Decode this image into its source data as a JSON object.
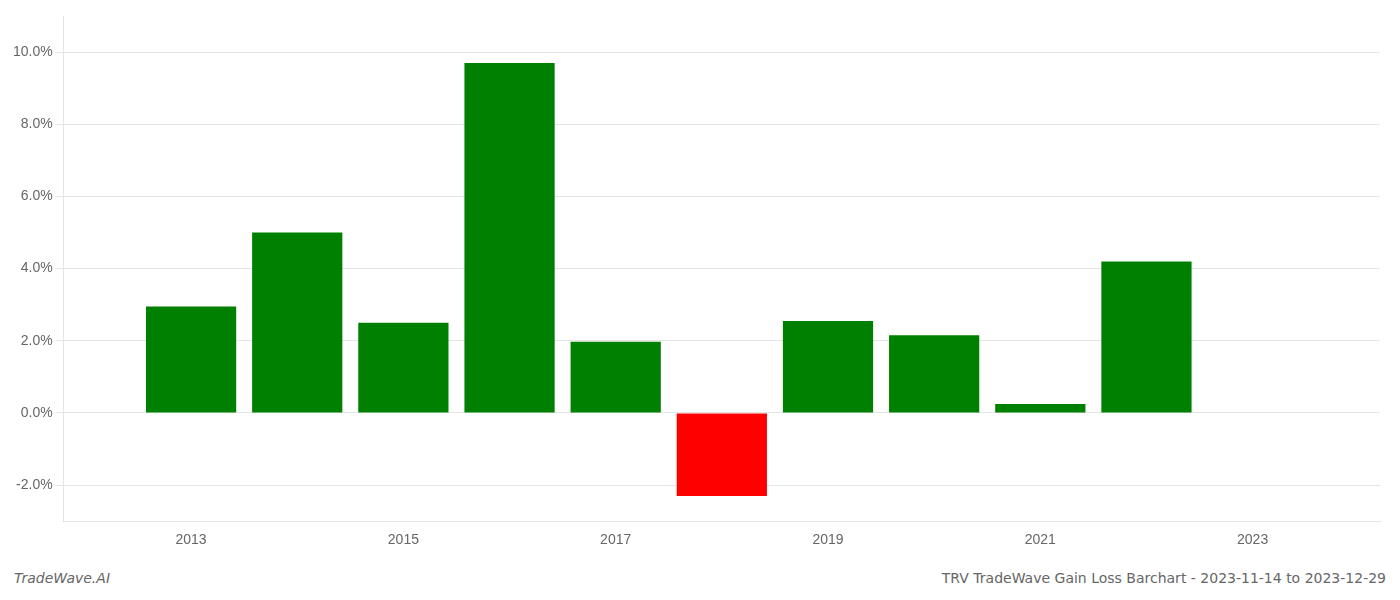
{
  "chart_data": {
    "type": "bar",
    "x": [
      2013,
      2014,
      2015,
      2016,
      2017,
      2018,
      2019,
      2020,
      2021,
      2022
    ],
    "values": [
      0.0295,
      0.05,
      0.025,
      0.097,
      0.0197,
      -0.023,
      0.0255,
      0.0215,
      0.0025,
      0.042
    ],
    "colors": [
      "#008000",
      "#008000",
      "#008000",
      "#008000",
      "#008000",
      "#ff0000",
      "#008000",
      "#008000",
      "#008000",
      "#008000"
    ],
    "xlim": [
      2011.8,
      2024.2
    ],
    "xticks": [
      2013,
      2015,
      2017,
      2019,
      2021,
      2023
    ],
    "ylim": [
      -0.03,
      0.11
    ],
    "yticks": [
      {
        "value": -0.02,
        "label": "-2.0%"
      },
      {
        "value": 0.0,
        "label": "0.0%"
      },
      {
        "value": 0.02,
        "label": "2.0%"
      },
      {
        "value": 0.04,
        "label": "4.0%"
      },
      {
        "value": 0.06,
        "label": "6.0%"
      },
      {
        "value": 0.08,
        "label": "8.0%"
      },
      {
        "value": 0.1,
        "label": "10.0%"
      }
    ],
    "grid": true,
    "annotations": [
      "TradeWave.AI",
      "TRV TradeWave Gain Loss Barchart - 2023-11-14 to 2023-12-29"
    ]
  }
}
